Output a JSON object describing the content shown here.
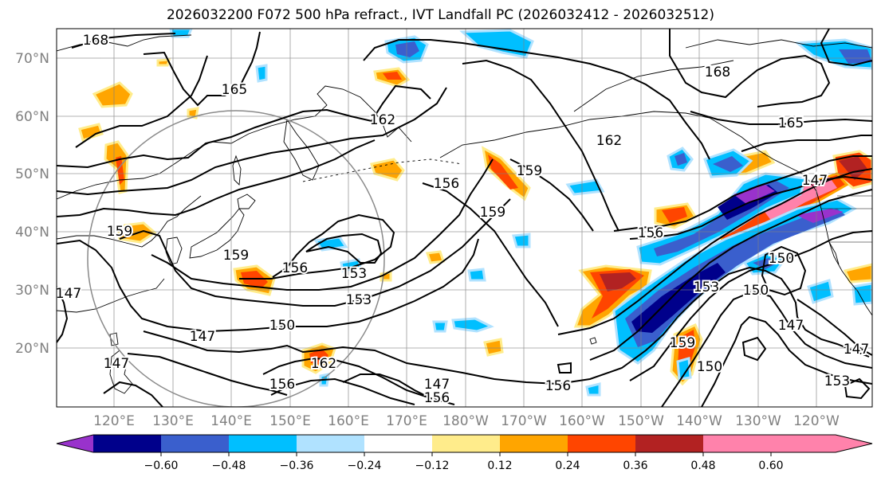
{
  "title": "2026032200 F072 500 hPa refract., IVT Landfall PC (2026032412 - 2026032512)",
  "lat_labels": [
    "70°N",
    "60°N",
    "50°N",
    "40°N",
    "30°N",
    "20°N"
  ],
  "lon_labels": [
    "120°E",
    "130°E",
    "140°E",
    "150°E",
    "160°E",
    "170°E",
    "180°W",
    "170°W",
    "160°W",
    "150°W",
    "140°W",
    "130°W",
    "120°W"
  ],
  "colorbar": {
    "ticks": [
      "−0.60",
      "−0.48",
      "−0.36",
      "−0.24",
      "−0.12",
      "0.12",
      "0.24",
      "0.36",
      "0.48",
      "0.60"
    ],
    "colors": [
      "#9932cc",
      "#00008b",
      "#3a5fcd",
      "#00bfff",
      "#b0e2ff",
      "#ffffff",
      "#ffec8b",
      "#ffa500",
      "#ff4500",
      "#b22222",
      "#ff82ab"
    ]
  },
  "contour_labels": [
    "168",
    "165",
    "162",
    "162",
    "159",
    "156",
    "153",
    "153",
    "150",
    "147",
    "147",
    "156",
    "162",
    "159",
    "156",
    "165",
    "168",
    "156",
    "153",
    "150",
    "147",
    "147",
    "159",
    "150",
    "153",
    "147",
    "147",
    "156",
    "159",
    "150",
    "147",
    "156",
    "159"
  ]
}
